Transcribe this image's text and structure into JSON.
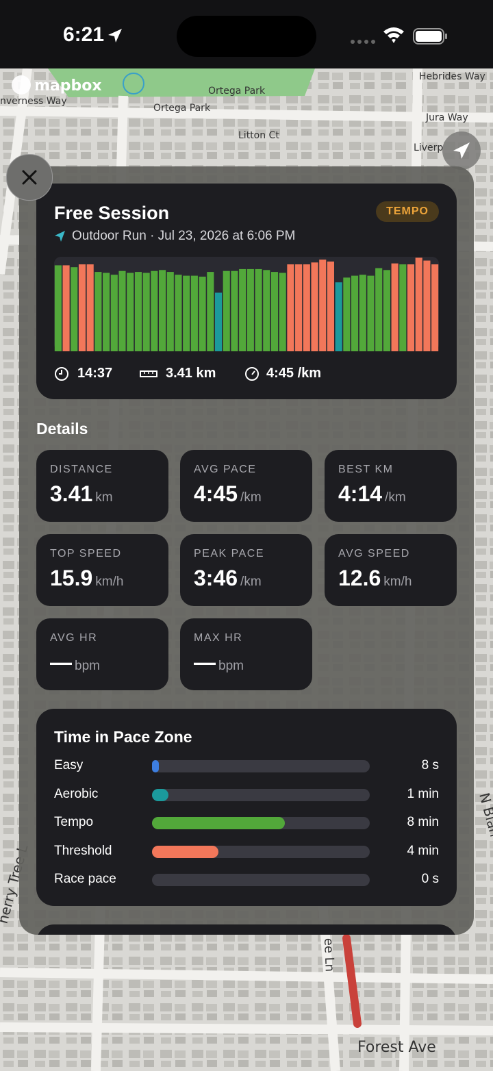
{
  "status_bar": {
    "time": "6:21"
  },
  "map": {
    "labels": [
      "mapbox",
      "nverness Way",
      "Ortega Park",
      "Ortega Park",
      "Litton Ct",
      "Hebrides Way",
      "Jura Way",
      "Liverp",
      "herry Tree L",
      "N Blan",
      "ee Ln",
      "Forest Ave"
    ]
  },
  "session": {
    "title": "Free Session",
    "badge": "TEMPO",
    "subtitle": "Outdoor Run · Jul 23, 2026 at 6:06 PM",
    "stats": [
      "14:37",
      "3.41 km",
      "4:45 /km"
    ]
  },
  "pace_chart": {
    "values": [
      91,
      91,
      89,
      92,
      92,
      84,
      83,
      81,
      85,
      83,
      84,
      83,
      85,
      86,
      84,
      81,
      80,
      80,
      79,
      84,
      62,
      85,
      85,
      87,
      87,
      87,
      86,
      84,
      83,
      92,
      92,
      92,
      94,
      97,
      95,
      73,
      78,
      80,
      81,
      80,
      88,
      86,
      93,
      92,
      92,
      99,
      96,
      92
    ],
    "zones": [
      "Tempo",
      "Threshold",
      "Tempo",
      "Threshold",
      "Threshold",
      "Tempo",
      "Tempo",
      "Tempo",
      "Tempo",
      "Tempo",
      "Tempo",
      "Tempo",
      "Tempo",
      "Tempo",
      "Tempo",
      "Tempo",
      "Tempo",
      "Tempo",
      "Tempo",
      "Tempo",
      "Aerobic",
      "Tempo",
      "Tempo",
      "Tempo",
      "Tempo",
      "Tempo",
      "Tempo",
      "Tempo",
      "Tempo",
      "Threshold",
      "Threshold",
      "Threshold",
      "Threshold",
      "Threshold",
      "Threshold",
      "Aerobic",
      "Tempo",
      "Tempo",
      "Tempo",
      "Tempo",
      "Tempo",
      "Tempo",
      "Threshold",
      "Tempo",
      "Threshold",
      "Threshold",
      "Threshold",
      "Threshold"
    ],
    "ylim": [
      0,
      100
    ]
  },
  "details": {
    "title": "Details",
    "metrics": [
      {
        "label": "DISTANCE",
        "value": "3.41",
        "unit": "km"
      },
      {
        "label": "AVG PACE",
        "value": "4:45",
        "unit": "/km"
      },
      {
        "label": "BEST KM",
        "value": "4:14",
        "unit": "/km"
      },
      {
        "label": "TOP SPEED",
        "value": "15.9",
        "unit": "km/h"
      },
      {
        "label": "PEAK PACE",
        "value": "3:46",
        "unit": "/km"
      },
      {
        "label": "AVG SPEED",
        "value": "12.6",
        "unit": "km/h"
      },
      {
        "label": "AVG HR",
        "value": "—",
        "unit": "bpm"
      },
      {
        "label": "MAX HR",
        "value": "—",
        "unit": "bpm"
      }
    ]
  },
  "pace_zones": {
    "title": "Time in Pace Zone",
    "zones": [
      {
        "name": "Easy",
        "color": "#3d7ee0",
        "value": 8,
        "value_label": "8 s"
      },
      {
        "name": "Aerobic",
        "color": "#1b9a9c",
        "value": 60,
        "value_label": "1 min"
      },
      {
        "name": "Tempo",
        "color": "#52a83a",
        "value": 480,
        "value_label": "8 min"
      },
      {
        "name": "Threshold",
        "color": "#f2775a",
        "value": 240,
        "value_label": "4 min"
      },
      {
        "name": "Race pace",
        "color": "#e04848",
        "value": 0,
        "value_label": "0 s"
      }
    ]
  }
}
